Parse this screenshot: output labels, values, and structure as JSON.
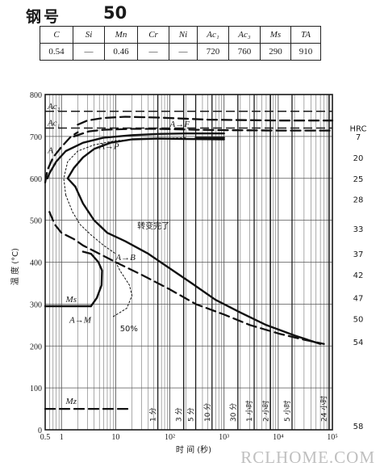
{
  "header": {
    "title_label": "钢号",
    "title_value": "50"
  },
  "composition": {
    "headers": [
      "C",
      "Si",
      "Mn",
      "Cr",
      "Ni",
      "Ac₁",
      "Ac₃",
      "Ms",
      "TA"
    ],
    "values": [
      "0.54",
      "—",
      "0.46",
      "—",
      "—",
      "720",
      "760",
      "290",
      "910"
    ]
  },
  "chart_data": {
    "type": "line",
    "x_scale": "log",
    "xlim": [
      0.5,
      100000
    ],
    "ylim": [
      0,
      800
    ],
    "grid": true,
    "ylabel": "温 度 (°C)",
    "xlabel": "时 间 (秒)",
    "y_ticks": [
      "0",
      "100",
      "200",
      "300",
      "400",
      "500",
      "600",
      "700",
      "800"
    ],
    "x_ticks": [
      {
        "value": 0.5,
        "label": "0.5"
      },
      {
        "value": 1,
        "label": "1"
      },
      {
        "value": 10,
        "label": "10"
      },
      {
        "value": 100,
        "label": "10²"
      },
      {
        "value": 1000,
        "label": "10³"
      },
      {
        "value": 10000,
        "label": "10⁴"
      },
      {
        "value": 100000,
        "label": "10⁵"
      }
    ],
    "time_markers": [
      {
        "value": 60,
        "label": "1 分"
      },
      {
        "value": 180,
        "label": "3 分"
      },
      {
        "value": 300,
        "label": "5 分"
      },
      {
        "value": 600,
        "label": "10 分"
      },
      {
        "value": 1800,
        "label": "30 分"
      },
      {
        "value": 3600,
        "label": "1 小时"
      },
      {
        "value": 7200,
        "label": "2 小时"
      },
      {
        "value": 18000,
        "label": "5 小时"
      },
      {
        "value": 86400,
        "label": "24 小时"
      }
    ],
    "hrc_label": "HRC",
    "hrc_scale": [
      {
        "temp": 700,
        "label": "7"
      },
      {
        "temp": 650,
        "label": "20"
      },
      {
        "temp": 600,
        "label": "25"
      },
      {
        "temp": 550,
        "label": "28"
      },
      {
        "temp": 480,
        "label": "33"
      },
      {
        "temp": 420,
        "label": "37"
      },
      {
        "temp": 370,
        "label": "42"
      },
      {
        "temp": 315,
        "label": "47"
      },
      {
        "temp": 265,
        "label": "50"
      },
      {
        "temp": 210,
        "label": "54"
      },
      {
        "temp": 10,
        "label": "58"
      }
    ],
    "reference_lines": [
      {
        "name": "Ac₃",
        "temp": 760
      },
      {
        "name": "Ac₁",
        "temp": 720
      }
    ],
    "series": [
      {
        "style": "dashed",
        "points": [
          [
            2,
            728
          ],
          [
            3,
            738
          ],
          [
            6,
            744
          ],
          [
            15,
            747
          ],
          [
            60,
            745
          ],
          [
            500,
            740
          ],
          [
            10000,
            738
          ],
          [
            100000,
            738
          ]
        ]
      },
      {
        "style": "dashed",
        "points": [
          [
            1.7,
            700
          ],
          [
            3.2,
            712
          ],
          [
            6,
            716
          ],
          [
            20,
            718
          ],
          [
            60,
            718
          ],
          [
            300,
            716
          ],
          [
            1000,
            715
          ],
          [
            10000,
            714
          ],
          [
            100000,
            714
          ]
        ]
      },
      {
        "style": "dashed",
        "points": [
          [
            0.5,
            590
          ],
          [
            0.55,
            620
          ],
          [
            0.7,
            650
          ],
          [
            1,
            675
          ],
          [
            1.5,
            700
          ],
          [
            2,
            710
          ]
        ]
      },
      {
        "style": "solid",
        "points": [
          [
            0.55,
            600
          ],
          [
            0.6,
            612
          ],
          [
            0.8,
            640
          ],
          [
            1.2,
            665
          ],
          [
            2.5,
            685
          ],
          [
            6,
            697
          ],
          [
            20,
            703
          ],
          [
            60,
            706
          ],
          [
            200,
            707
          ],
          [
            1000,
            707
          ]
        ]
      },
      {
        "style": "solid",
        "points": [
          [
            300,
            697
          ],
          [
            1000,
            697
          ]
        ]
      },
      {
        "style": "solid",
        "points": [
          [
            1.8,
            580
          ],
          [
            1.3,
            600
          ],
          [
            1.7,
            625
          ],
          [
            2.5,
            650
          ],
          [
            4,
            670
          ],
          [
            8,
            685
          ],
          [
            20,
            693
          ],
          [
            60,
            695
          ],
          [
            200,
            694
          ],
          [
            1000,
            693
          ]
        ]
      },
      {
        "style": "solid",
        "points": [
          [
            1.8,
            580
          ],
          [
            2.5,
            540
          ],
          [
            4,
            500
          ],
          [
            7,
            470
          ],
          [
            15,
            450
          ],
          [
            40,
            420
          ],
          [
            100,
            385
          ],
          [
            250,
            350
          ],
          [
            700,
            310
          ],
          [
            2000,
            280
          ],
          [
            6000,
            250
          ],
          [
            20000,
            225
          ],
          [
            60000,
            205
          ]
        ]
      },
      {
        "style": "dashed",
        "points": [
          [
            0.6,
            520
          ],
          [
            0.75,
            490
          ],
          [
            1,
            470
          ],
          [
            1.7,
            455
          ],
          [
            2.5,
            440
          ],
          [
            5,
            420
          ],
          [
            10,
            400
          ]
        ]
      },
      {
        "style": "dashed",
        "points": [
          [
            10,
            400
          ],
          [
            30,
            370
          ],
          [
            100,
            335
          ],
          [
            300,
            300
          ],
          [
            1000,
            275
          ],
          [
            3000,
            250
          ],
          [
            10000,
            230
          ],
          [
            30000,
            215
          ],
          [
            70000,
            205
          ]
        ]
      },
      {
        "style": "dotted",
        "points": [
          [
            1.2,
            560
          ],
          [
            1.1,
            600
          ],
          [
            1.3,
            640
          ],
          [
            2,
            665
          ],
          [
            4,
            680
          ],
          [
            10,
            690
          ],
          [
            40,
            695
          ],
          [
            200,
            697
          ]
        ]
      },
      {
        "style": "dotted",
        "points": [
          [
            1.2,
            560
          ],
          [
            1.6,
            520
          ],
          [
            2.2,
            490
          ],
          [
            3.5,
            465
          ],
          [
            6,
            440
          ],
          [
            10,
            420
          ]
        ]
      },
      {
        "style": "dotted",
        "points": [
          [
            10,
            400
          ],
          [
            12,
            380
          ],
          [
            18,
            345
          ],
          [
            20,
            320
          ],
          [
            16,
            290
          ],
          [
            9,
            270
          ]
        ]
      },
      {
        "style": "solid",
        "points": [
          [
            0.5,
            295
          ],
          [
            1,
            295
          ],
          [
            3.5,
            295
          ]
        ]
      },
      {
        "style": "solid",
        "points": [
          [
            3.5,
            295
          ],
          [
            4.5,
            315
          ],
          [
            5.5,
            345
          ],
          [
            5.6,
            380
          ],
          [
            4.8,
            400
          ],
          [
            3.5,
            420
          ],
          [
            2.5,
            425
          ]
        ]
      },
      {
        "style": "dashed",
        "points": [
          [
            0.5,
            50
          ],
          [
            4,
            50
          ],
          [
            20,
            50
          ]
        ]
      }
    ],
    "annotations": [
      {
        "text": "A",
        "x": 0.56,
        "y": 660
      },
      {
        "text": "A→P",
        "x": 5,
        "y": 670
      },
      {
        "text": "A→F",
        "x": 100,
        "y": 723
      },
      {
        "text": "A→B",
        "x": 10,
        "y": 405
      },
      {
        "text": "A→M",
        "x": 1.4,
        "y": 255
      },
      {
        "text": "Ms",
        "x": 1.2,
        "y": 305
      },
      {
        "text": "Mz",
        "x": 1.2,
        "y": 62
      },
      {
        "text": "转变完了",
        "x": 25,
        "y": 480
      },
      {
        "text": "50%",
        "x": 12,
        "y": 235
      }
    ]
  },
  "watermark": "RCLHOME.COM"
}
